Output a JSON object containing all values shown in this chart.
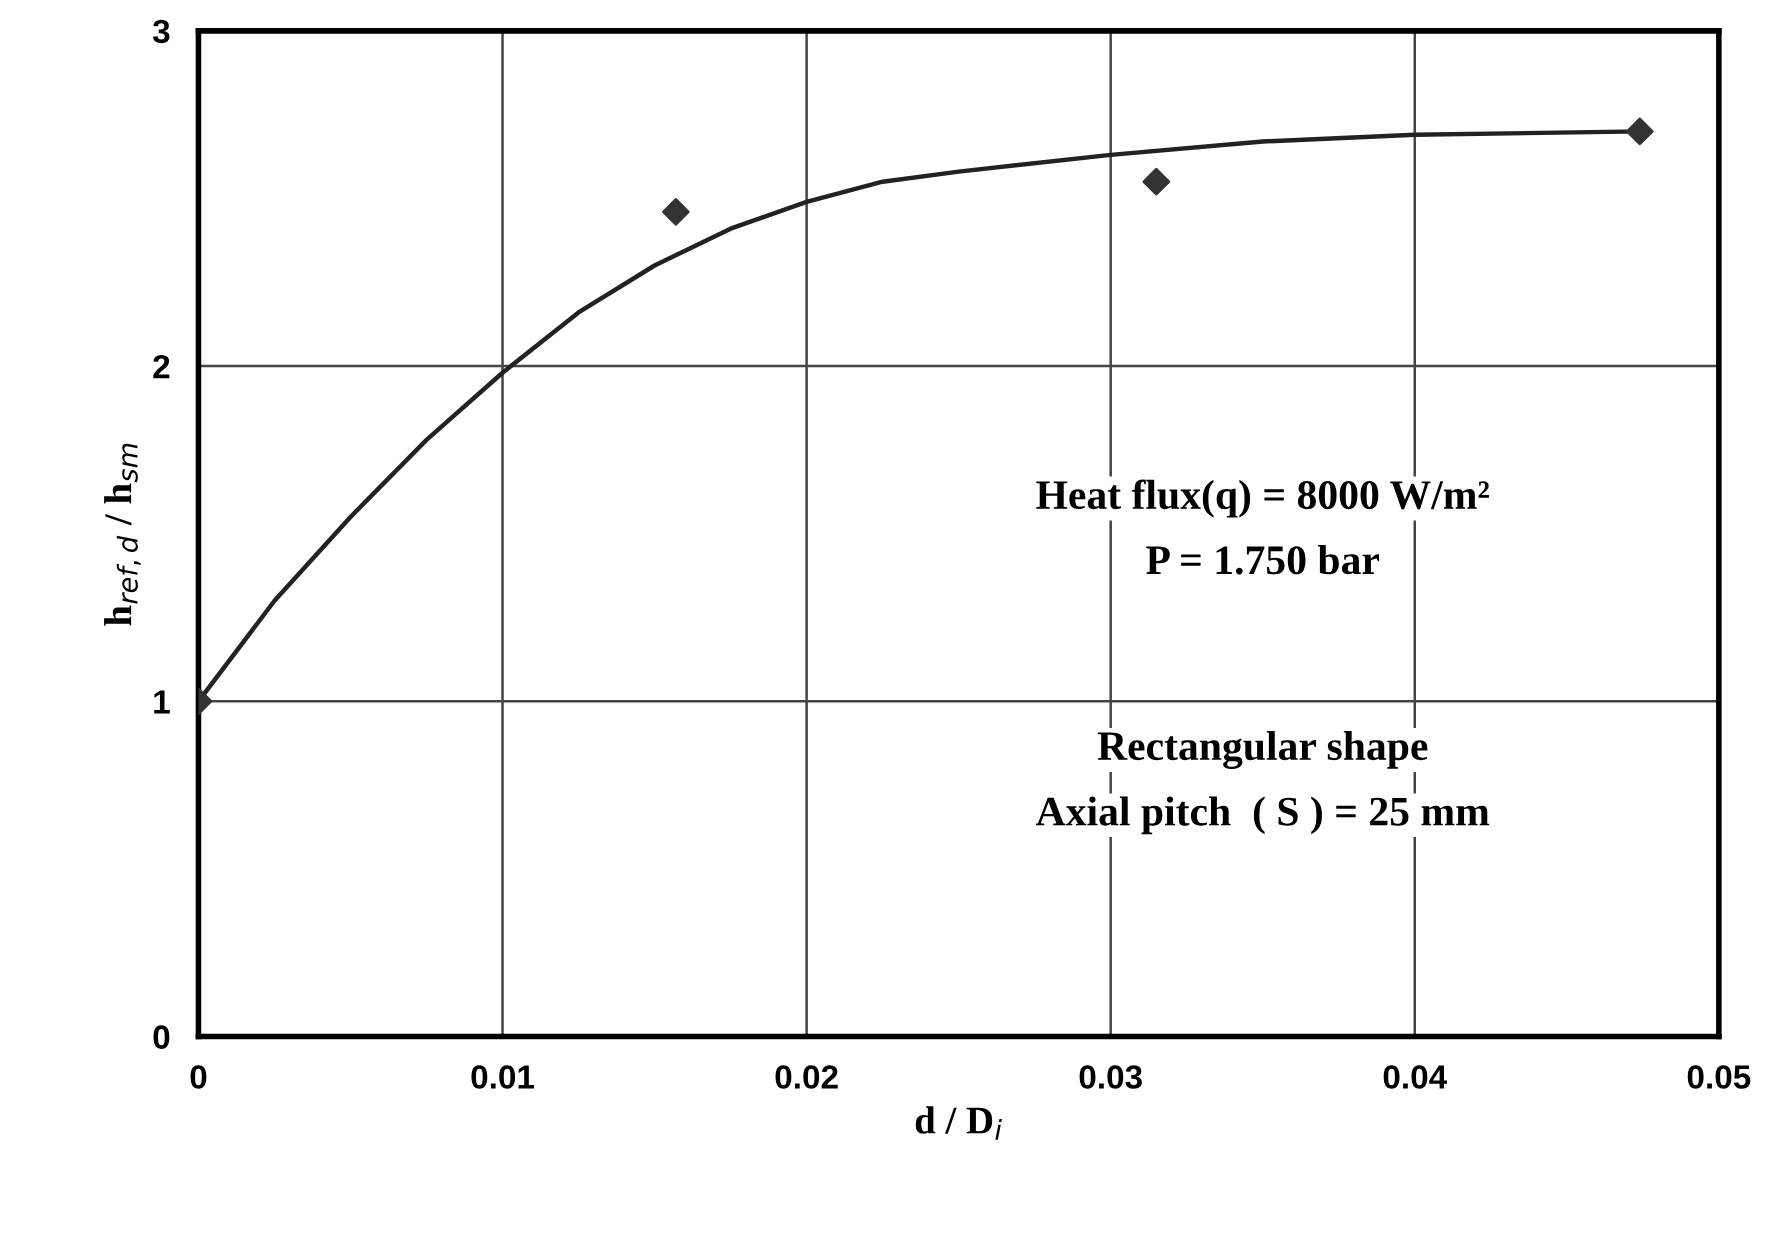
{
  "chart_data": {
    "type": "scatter",
    "xlabel": "d / D$_{i}$",
    "ylabel": "h$_{ref,d}$ / h$_{sm}$",
    "series": [
      {
        "color": "#333333",
        "marker": "diamond",
        "x": [
          0,
          0.0157,
          0.0315,
          0.0474
        ],
        "values": [
          1,
          2.46,
          2.55,
          2.7
        ]
      },
      {
        "type": "line",
        "color": "#222222",
        "marker": "none",
        "x": [
          0,
          0.0025,
          0.005,
          0.0075,
          0.01,
          0.0125,
          0.015,
          0.0175,
          0.02,
          0.0225,
          0.025,
          0.03,
          0.035,
          0.04,
          0.0474
        ],
        "values": [
          1,
          1.3,
          1.55,
          1.78,
          1.98,
          2.16,
          2.3,
          2.41,
          2.49,
          2.55,
          2.58,
          2.63,
          2.67,
          2.69,
          2.7
        ]
      }
    ],
    "xlim": [
      0,
      0.05
    ],
    "xticks": [
      0,
      0.01,
      0.02,
      0.03,
      0.04,
      0.05
    ],
    "ylim": [
      0,
      3
    ],
    "yticks": [
      0,
      1,
      2,
      3
    ],
    "grid": true,
    "annotations": [
      "Heat flux(q) = 8000 W/m²",
      "P = 1.750 bar",
      "Rectangular shape",
      "Axial pitch  ( S ) = 25 mm"
    ]
  }
}
